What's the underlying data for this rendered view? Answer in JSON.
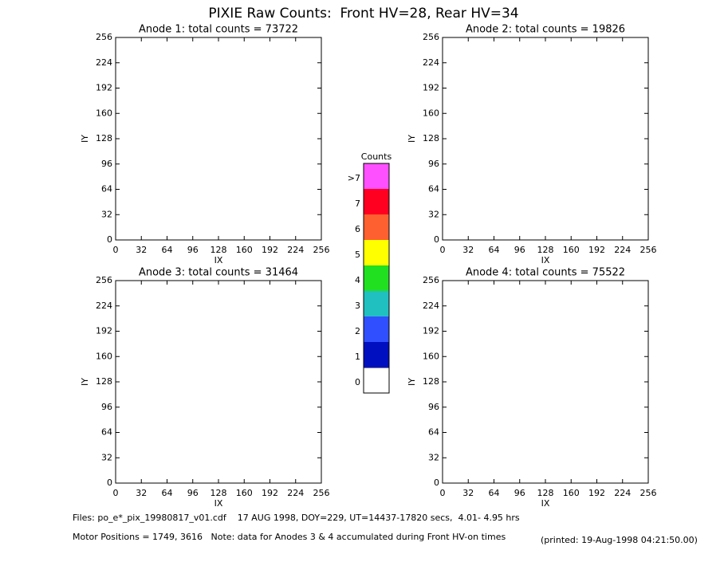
{
  "title": "PIXIE Raw Counts:  Front HV=28, Rear HV=34",
  "chart_data": [
    {
      "type": "heatmap",
      "title": "Anode 1: total counts = 73722",
      "xlabel": "IX",
      "ylabel": "IY",
      "xlim": [
        0,
        256
      ],
      "xticks": [
        0,
        32,
        64,
        96,
        128,
        160,
        192,
        224,
        256
      ],
      "ylim": [
        0,
        256
      ],
      "yticks": [
        0,
        32,
        64,
        96,
        128,
        160,
        192,
        224,
        256
      ]
    },
    {
      "type": "heatmap",
      "title": "Anode 2: total counts = 19826",
      "xlabel": "IX",
      "ylabel": "IY",
      "xlim": [
        0,
        256
      ],
      "xticks": [
        0,
        32,
        64,
        96,
        128,
        160,
        192,
        224,
        256
      ],
      "ylim": [
        0,
        256
      ],
      "yticks": [
        0,
        32,
        64,
        96,
        128,
        160,
        192,
        224,
        256
      ]
    },
    {
      "type": "heatmap",
      "title": "Anode 3: total counts = 31464",
      "xlabel": "IX",
      "ylabel": "IY",
      "xlim": [
        0,
        256
      ],
      "xticks": [
        0,
        32,
        64,
        96,
        128,
        160,
        192,
        224,
        256
      ],
      "ylim": [
        0,
        256
      ],
      "yticks": [
        0,
        32,
        64,
        96,
        128,
        160,
        192,
        224,
        256
      ]
    },
    {
      "type": "heatmap",
      "title": "Anode 4: total counts = 75522",
      "xlabel": "IX",
      "ylabel": "IY",
      "xlim": [
        0,
        256
      ],
      "xticks": [
        0,
        32,
        64,
        96,
        128,
        160,
        192,
        224,
        256
      ],
      "ylim": [
        0,
        256
      ],
      "yticks": [
        0,
        32,
        64,
        96,
        128,
        160,
        192,
        224,
        256
      ]
    }
  ],
  "colorbar": {
    "title": "Counts",
    "categories": [
      "0",
      "1",
      "2",
      "3",
      "4",
      "5",
      "6",
      "7",
      ">7"
    ],
    "colors": [
      "#ffffff",
      "#0010c0",
      "#3050ff",
      "#20c0c0",
      "#20e020",
      "#ffff00",
      "#ff6030",
      "#ff0020",
      "#ff50ff"
    ]
  },
  "footer": {
    "files": "Files: po_e*_pix_19980817_v01.cdf    17 AUG 1998, DOY=229, UT=14437-17820 secs,  4.01- 4.95 hrs",
    "note": "Motor Positions = 1749, 3616   Note: data for Anodes 3 & 4 accumulated during Front HV-on times",
    "printed": "(printed: 19-Aug-1998 04:21:50.00)"
  }
}
